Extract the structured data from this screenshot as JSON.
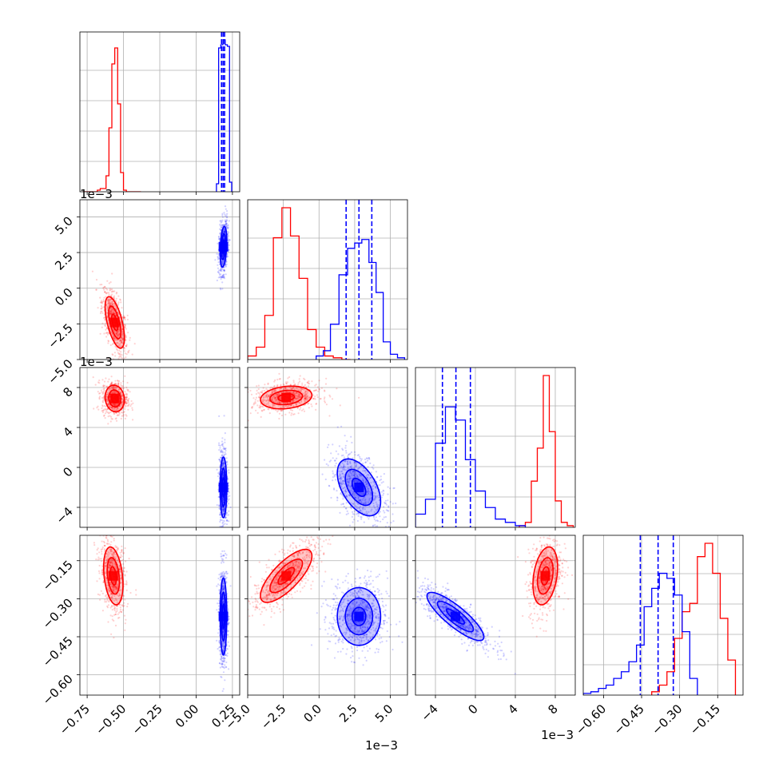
{
  "chart_data": {
    "type": "corner",
    "grid": true,
    "n_params": 4,
    "colors": {
      "series_a": "#ff0000",
      "series_b": "#0000ff"
    },
    "params": [
      {
        "range": [
          -0.8,
          0.3
        ],
        "ticks": [
          -0.75,
          -0.5,
          -0.25,
          0.0,
          0.25
        ],
        "tick_labels": [
          "−0.75",
          "−0.50",
          "−0.25",
          "0.00",
          "0.25"
        ],
        "offset": ""
      },
      {
        "range": [
          -5.0,
          6.2
        ],
        "ticks": [
          -5.0,
          -2.5,
          0.0,
          2.5,
          5.0
        ],
        "tick_labels": [
          "−5.0",
          "−2.5",
          "0.0",
          "2.5",
          "5.0"
        ],
        "offset": "1e−3"
      },
      {
        "range": [
          -6.0,
          10.0
        ],
        "ticks": [
          -4,
          0,
          4,
          8
        ],
        "tick_labels": [
          "−4",
          "0",
          "4",
          "8"
        ],
        "offset": "1e−3"
      },
      {
        "range": [
          -0.68,
          -0.05
        ],
        "ticks": [
          -0.6,
          -0.45,
          -0.3,
          -0.15
        ],
        "tick_labels": [
          "−0.60",
          "−0.45",
          "−0.30",
          "−0.15"
        ],
        "offset": ""
      }
    ],
    "series": [
      {
        "color": "#ff0000",
        "histograms": [
          {
            "edges": [
              -0.78,
              -0.76,
              -0.74,
              -0.72,
              -0.7,
              -0.68,
              -0.66,
              -0.64,
              -0.62,
              -0.6,
              -0.58,
              -0.56,
              -0.54,
              -0.52,
              -0.5,
              -0.48,
              -0.46,
              -0.44,
              -0.42,
              -0.4,
              -0.38
            ],
            "counts": [
              0,
              0,
              0,
              0,
              0,
              1,
              2,
              2,
              10,
              40,
              80,
              90,
              55,
              12,
              1,
              0,
              0,
              0,
              0,
              0
            ]
          },
          {
            "edges": [
              -5.0,
              -4.4,
              -3.8,
              -3.2,
              -2.6,
              -2.0,
              -1.4,
              -0.8,
              -0.2,
              0.4,
              1.0,
              1.6,
              2.2
            ],
            "counts": [
              2,
              7,
              25,
              69,
              86,
              70,
              46,
              17,
              7,
              2,
              1,
              0
            ]
          },
          {
            "edges": [
              4.4,
              5.0,
              5.6,
              6.2,
              6.8,
              7.4,
              8.0,
              8.6,
              9.2,
              9.8
            ],
            "counts": [
              1,
              3,
              28,
              48,
              92,
              58,
              16,
              3,
              1
            ]
          },
          {
            "edges": [
              -0.41,
              -0.38,
              -0.35,
              -0.32,
              -0.29,
              -0.26,
              -0.23,
              -0.2,
              -0.17,
              -0.14,
              -0.11,
              -0.08
            ],
            "counts": [
              2,
              6,
              14,
              34,
              50,
              55,
              83,
              91,
              73,
              46,
              21
            ]
          }
        ]
      },
      {
        "color": "#0000ff",
        "histograms": [
          {
            "edges": [
              0.14,
              0.155,
              0.17,
              0.185,
              0.2,
              0.215,
              0.23,
              0.245
            ],
            "counts": [
              5,
              90,
              92,
              95,
              92,
              91,
              6
            ]
          },
          {
            "edges": [
              -0.2,
              0.3,
              0.8,
              1.4,
              2.0,
              2.5,
              3.0,
              3.5,
              4.0,
              4.5,
              5.0,
              5.5,
              6.0
            ],
            "counts": [
              2,
              5,
              20,
              48,
              63,
              66,
              68,
              55,
              38,
              10,
              3,
              1
            ]
          },
          {
            "edges": [
              -6.0,
              -5.0,
              -4.0,
              -3.0,
              -2.0,
              -1.0,
              0.0,
              1.0,
              2.0,
              3.0,
              4.0,
              5.0
            ],
            "counts": [
              8,
              17,
              51,
              73,
              65,
              41,
              22,
              12,
              5,
              3,
              1
            ]
          },
          {
            "edges": [
              -0.68,
              -0.65,
              -0.62,
              -0.59,
              -0.56,
              -0.53,
              -0.5,
              -0.47,
              -0.44,
              -0.41,
              -0.38,
              -0.35,
              -0.32,
              -0.29,
              -0.26,
              -0.23
            ],
            "counts": [
              1,
              2,
              4,
              6,
              10,
              14,
              20,
              30,
              53,
              64,
              73,
              70,
              60,
              38,
              10
            ]
          }
        ],
        "quantiles": [
          [
            0.175,
            0.186,
            0.196
          ],
          [
            1.9,
            2.8,
            3.7
          ],
          [
            -3.3,
            -1.95,
            -0.5
          ],
          [
            -0.455,
            -0.385,
            -0.325
          ]
        ]
      }
    ],
    "clusters": [
      {
        "series": 0,
        "pair": [
          1,
          0
        ],
        "mean": [
          -0.56,
          -2.4
        ],
        "sd": [
          0.035,
          0.95
        ],
        "rho": -0.6
      },
      {
        "series": 1,
        "pair": [
          1,
          0
        ],
        "mean": [
          0.188,
          2.9
        ],
        "sd": [
          0.012,
          0.75
        ],
        "rho": 0.3
      },
      {
        "series": 0,
        "pair": [
          2,
          0
        ],
        "mean": [
          -0.56,
          6.9
        ],
        "sd": [
          0.035,
          0.7
        ],
        "rho": -0.1
      },
      {
        "series": 1,
        "pair": [
          2,
          0
        ],
        "mean": [
          0.188,
          -2.0
        ],
        "sd": [
          0.012,
          1.6
        ],
        "rho": 0.0
      },
      {
        "series": 0,
        "pair": [
          2,
          1
        ],
        "mean": [
          -2.3,
          7.0
        ],
        "sd": [
          0.95,
          0.6
        ],
        "rho": 0.2
      },
      {
        "series": 1,
        "pair": [
          2,
          1
        ],
        "mean": [
          2.8,
          -2.0
        ],
        "sd": [
          0.8,
          1.5
        ],
        "rho": -0.5
      },
      {
        "series": 0,
        "pair": [
          3,
          0
        ],
        "mean": [
          -0.57,
          -0.21
        ],
        "sd": [
          0.035,
          0.06
        ],
        "rho": -0.3
      },
      {
        "series": 1,
        "pair": [
          3,
          0
        ],
        "mean": [
          0.188,
          -0.37
        ],
        "sd": [
          0.012,
          0.08
        ],
        "rho": 0.0
      },
      {
        "series": 0,
        "pair": [
          3,
          1
        ],
        "mean": [
          -2.3,
          -0.21
        ],
        "sd": [
          0.95,
          0.055
        ],
        "rho": 0.75
      },
      {
        "series": 1,
        "pair": [
          3,
          1
        ],
        "mean": [
          2.8,
          -0.37
        ],
        "sd": [
          0.8,
          0.06
        ],
        "rho": 0.0
      },
      {
        "series": 0,
        "pair": [
          3,
          2
        ],
        "mean": [
          7.0,
          -0.21
        ],
        "sd": [
          0.65,
          0.06
        ],
        "rho": 0.3
      },
      {
        "series": 1,
        "pair": [
          3,
          2
        ],
        "mean": [
          -2.0,
          -0.37
        ],
        "sd": [
          1.5,
          0.05
        ],
        "rho": -0.85
      }
    ]
  }
}
